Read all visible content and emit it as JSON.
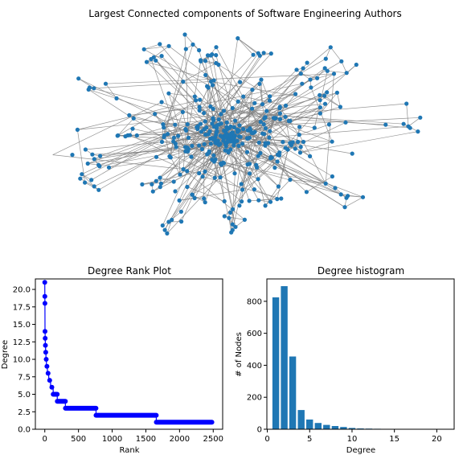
{
  "page": {
    "network_title": "Largest Connected components of Software Engineering Authors"
  },
  "colors": {
    "node": "#1f77b4",
    "edge": "#808080",
    "rank_marker": "#0000ff",
    "bar": "#1f77b4"
  },
  "chart_data": [
    {
      "type": "network",
      "title": "Largest Connected components of Software Engineering Authors",
      "node_color": "#1f77b4",
      "edge_color": "#808080"
    },
    {
      "type": "scatter",
      "title": "Degree Rank Plot",
      "xlabel": "Rank",
      "ylabel": "Degree",
      "xlim": [
        -140,
        2640
      ],
      "ylim": [
        0,
        21.5
      ],
      "xticks": [
        0,
        500,
        1000,
        1500,
        2000,
        2500
      ],
      "yticks": [
        0.0,
        2.5,
        5.0,
        7.5,
        10.0,
        12.5,
        15.0,
        17.5,
        20.0
      ],
      "ytick_labels": [
        "0.0",
        "2.5",
        "5.0",
        "7.5",
        "10.0",
        "12.5",
        "15.0",
        "17.5",
        "20.0"
      ],
      "segments": [
        {
          "degree": 21,
          "rank_start": 0,
          "rank_end": 0
        },
        {
          "degree": 19,
          "rank_start": 1,
          "rank_end": 1
        },
        {
          "degree": 18,
          "rank_start": 2,
          "rank_end": 2
        },
        {
          "degree": 14,
          "rank_start": 3,
          "rank_end": 4
        },
        {
          "degree": 13,
          "rank_start": 5,
          "rank_end": 7
        },
        {
          "degree": 12,
          "rank_start": 8,
          "rank_end": 11
        },
        {
          "degree": 11,
          "rank_start": 12,
          "rank_end": 16
        },
        {
          "degree": 10,
          "rank_start": 17,
          "rank_end": 24
        },
        {
          "degree": 9,
          "rank_start": 25,
          "rank_end": 38
        },
        {
          "degree": 8,
          "rank_start": 39,
          "rank_end": 58
        },
        {
          "degree": 7,
          "rank_start": 59,
          "rank_end": 85
        },
        {
          "degree": 6,
          "rank_start": 86,
          "rank_end": 124
        },
        {
          "degree": 5,
          "rank_start": 125,
          "rank_end": 185
        },
        {
          "degree": 4,
          "rank_start": 186,
          "rank_end": 305
        },
        {
          "degree": 3,
          "rank_start": 306,
          "rank_end": 760
        },
        {
          "degree": 2,
          "rank_start": 761,
          "rank_end": 1655
        },
        {
          "degree": 1,
          "rank_start": 1656,
          "rank_end": 2480
        }
      ]
    },
    {
      "type": "bar",
      "title": "Degree histogram",
      "xlabel": "Degree",
      "ylabel": "# of Nodes",
      "xlim": [
        -0.05,
        22.05
      ],
      "ylim": [
        0,
        940
      ],
      "xticks": [
        0,
        5,
        10,
        15,
        20
      ],
      "yticks": [
        0,
        200,
        400,
        600,
        800
      ],
      "categories": [
        1,
        2,
        3,
        4,
        5,
        6,
        7,
        8,
        9,
        10,
        11,
        12,
        13,
        14,
        15,
        16,
        17,
        18,
        19,
        20,
        21
      ],
      "values": [
        825,
        895,
        455,
        120,
        61,
        39,
        27,
        20,
        14,
        8,
        5,
        4,
        3,
        2,
        0,
        0,
        0,
        1,
        1,
        0,
        1
      ]
    }
  ]
}
